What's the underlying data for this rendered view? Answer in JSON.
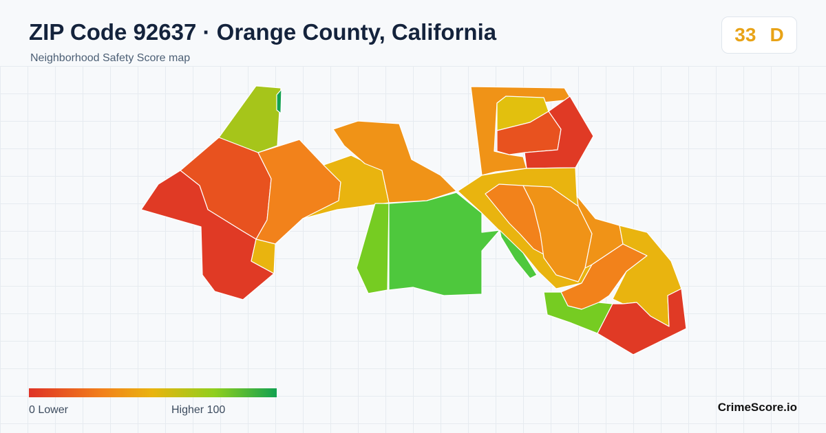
{
  "header": {
    "title": "ZIP Code 92637 · Orange County, California",
    "subtitle": "Neighborhood Safety Score map"
  },
  "score": {
    "value": "33",
    "grade": "D",
    "color": "#e8a317"
  },
  "legend": {
    "low_label": "0  Lower",
    "high_label": "Higher  100",
    "colors": [
      "#df3326",
      "#f2821b",
      "#e9b40f",
      "#8fcf1e",
      "#12a150"
    ]
  },
  "brand": "CrimeScore.io",
  "palette": {
    "red": "#e03a25",
    "red_orange": "#e8521f",
    "orange": "#f2821b",
    "amber": "#f09317",
    "gold": "#e9b40f",
    "yellow_green": "#a6c51a",
    "light_green": "#76cc22",
    "green": "#4ec83d",
    "dark_green": "#12a150"
  }
}
